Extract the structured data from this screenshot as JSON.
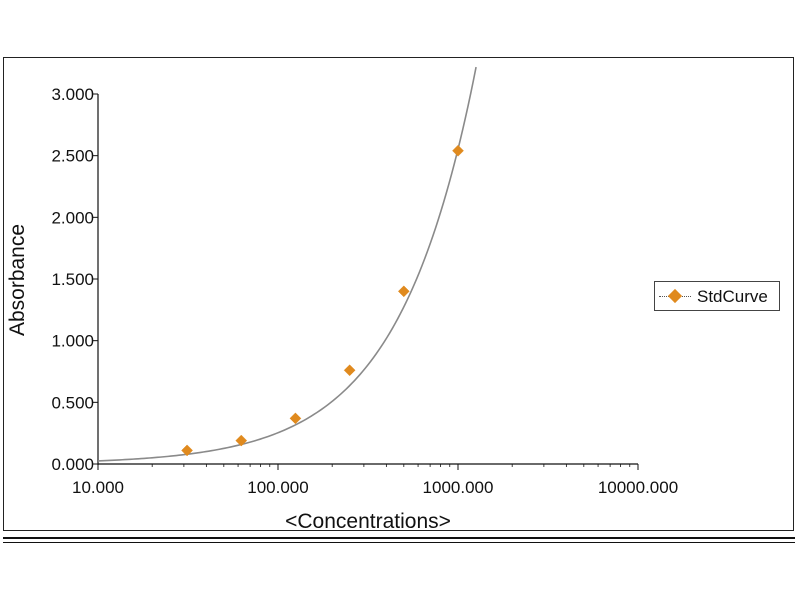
{
  "chart_data": {
    "type": "scatter",
    "title": "",
    "xlabel": "<Concentrations>",
    "ylabel": "Absorbance",
    "x_scale": "log",
    "xlim": [
      10,
      10000
    ],
    "ylim": [
      0,
      3
    ],
    "x_ticks": [
      10,
      100,
      1000,
      10000
    ],
    "x_tick_labels": [
      "10.000",
      "100.000",
      "1000.000",
      "10000.000"
    ],
    "y_ticks": [
      0,
      0.5,
      1,
      1.5,
      2,
      2.5,
      3
    ],
    "y_tick_labels": [
      "0.000",
      "0.500",
      "1.000",
      "1.500",
      "2.000",
      "2.500",
      "3.000"
    ],
    "grid": false,
    "legend_position": "right",
    "series": [
      {
        "name": "StdCurve",
        "marker": "diamond",
        "color": "#e08a1e",
        "points": [
          {
            "x": 31.25,
            "y": 0.11
          },
          {
            "x": 62.5,
            "y": 0.19
          },
          {
            "x": 125,
            "y": 0.37
          },
          {
            "x": 250,
            "y": 0.76
          },
          {
            "x": 500,
            "y": 1.4
          },
          {
            "x": 1000,
            "y": 2.54
          }
        ]
      }
    ],
    "fit_curve": {
      "color": "#8a8a8a",
      "x_range": [
        10,
        1260
      ],
      "power_fit": {
        "a": 0.0025,
        "b": 1.003
      }
    }
  }
}
